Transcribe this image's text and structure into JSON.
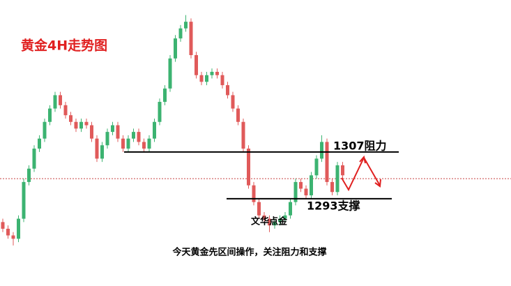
{
  "chart_data": {
    "type": "candlestick",
    "title": "黄金4H走势图",
    "watermark": "文华点金",
    "footnote": "今天黄金先区间操作，关注阻力和支撑",
    "up_color": "#3cb371",
    "down_color": "#e05a5a",
    "ylim": [
      1275,
      1350
    ],
    "open": [
      1286,
      1284,
      1282,
      1281,
      1287,
      1298,
      1302,
      1308,
      1311,
      1316,
      1320,
      1324,
      1321,
      1318,
      1316,
      1314,
      1316,
      1315,
      1311,
      1305,
      1309,
      1313,
      1315,
      1311,
      1308,
      1311,
      1313,
      1310,
      1308,
      1311,
      1316,
      1322,
      1326,
      1335,
      1341,
      1344,
      1346,
      1336,
      1330,
      1328,
      1330,
      1331,
      1330,
      1327,
      1324,
      1320,
      1316,
      1308,
      1297,
      1292,
      1288,
      1287,
      1285,
      1286,
      1287,
      1288,
      1292,
      1298,
      1296,
      1294,
      1300,
      1305,
      1310,
      1298,
      1295,
      1303
    ],
    "high": [
      1287,
      1285,
      1283,
      1288,
      1299,
      1303,
      1309,
      1312,
      1317,
      1321,
      1325,
      1325,
      1322,
      1319,
      1317,
      1317,
      1317,
      1316,
      1312,
      1310,
      1314,
      1316,
      1316,
      1312,
      1312,
      1314,
      1314,
      1311,
      1312,
      1317,
      1323,
      1327,
      1336,
      1342,
      1345,
      1348,
      1347,
      1337,
      1331,
      1331,
      1332,
      1332,
      1331,
      1328,
      1325,
      1321,
      1317,
      1309,
      1298,
      1293,
      1289,
      1288,
      1287,
      1288,
      1289,
      1293,
      1299,
      1299,
      1297,
      1301,
      1306,
      1312,
      1311,
      1299,
      1304,
      1304
    ],
    "low": [
      1283,
      1281,
      1279,
      1280,
      1286,
      1297,
      1301,
      1307,
      1310,
      1315,
      1319,
      1320,
      1317,
      1315,
      1313,
      1313,
      1314,
      1310,
      1304,
      1304,
      1308,
      1312,
      1310,
      1307,
      1307,
      1310,
      1309,
      1307,
      1307,
      1310,
      1315,
      1321,
      1325,
      1334,
      1340,
      1343,
      1335,
      1329,
      1327,
      1327,
      1329,
      1329,
      1326,
      1323,
      1319,
      1315,
      1307,
      1296,
      1291,
      1287,
      1286,
      1283,
      1284,
      1285,
      1286,
      1287,
      1291,
      1295,
      1293,
      1293,
      1299,
      1304,
      1297,
      1294,
      1294,
      1299
    ],
    "close": [
      1284,
      1282,
      1281,
      1287,
      1298,
      1302,
      1308,
      1311,
      1316,
      1320,
      1324,
      1321,
      1318,
      1316,
      1314,
      1316,
      1315,
      1311,
      1305,
      1309,
      1313,
      1315,
      1311,
      1308,
      1311,
      1313,
      1310,
      1308,
      1311,
      1316,
      1322,
      1326,
      1335,
      1341,
      1344,
      1346,
      1336,
      1330,
      1328,
      1330,
      1331,
      1330,
      1327,
      1324,
      1320,
      1316,
      1308,
      1297,
      1292,
      1288,
      1287,
      1285,
      1286,
      1287,
      1288,
      1292,
      1298,
      1296,
      1294,
      1300,
      1305,
      1310,
      1298,
      1295,
      1303,
      1300
    ],
    "current_price": 1299,
    "current_price_color": "#c84040",
    "levels": [
      {
        "value": 1307,
        "label": "1307阻力"
      },
      {
        "value": 1293,
        "label": "1293支撑"
      }
    ]
  }
}
